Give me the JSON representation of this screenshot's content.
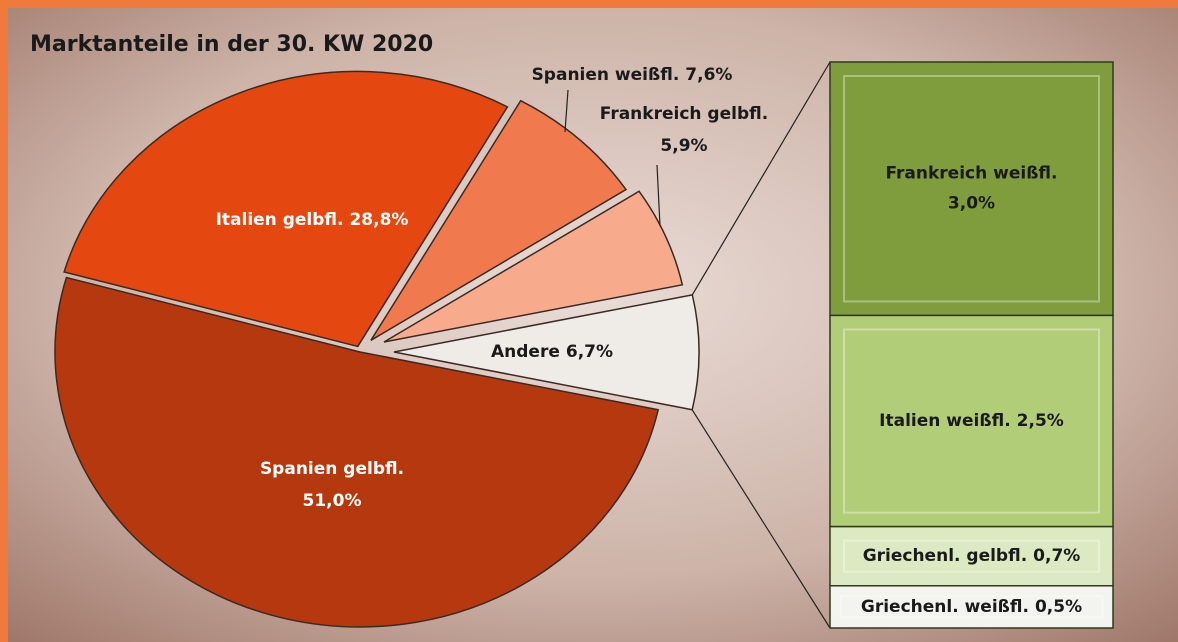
{
  "chart_data": {
    "type": "pie",
    "title": "Marktanteile in der 30. KW 2020",
    "categories": [
      "Andere",
      "Spanien gelbfl.",
      "Italien gelbfl.",
      "Spanien weißfl.",
      "Frankreich gelbfl."
    ],
    "values": [
      6.7,
      51.0,
      28.8,
      7.6,
      5.9
    ],
    "value_labels": [
      "6,7%",
      "51,0%",
      "28,8%",
      "7,6%",
      "5,9%"
    ],
    "colors": [
      "#efebe7",
      "#b5380f",
      "#e4470f",
      "#f07a4e",
      "#f8ab8c"
    ],
    "breakout": {
      "categories": [
        "Frankreich weißfl.",
        "Italien weißfl.",
        "Griechenl. gelbfl.",
        "Griechenl. weißfl."
      ],
      "values": [
        3.0,
        2.5,
        0.7,
        0.5
      ],
      "value_labels": [
        "3,0%",
        "2,5%",
        "0,7%",
        "0,5%"
      ],
      "colors": [
        "#7f9d3c",
        "#b2cd78",
        "#dce9c2",
        "#f3f3ef"
      ]
    }
  }
}
